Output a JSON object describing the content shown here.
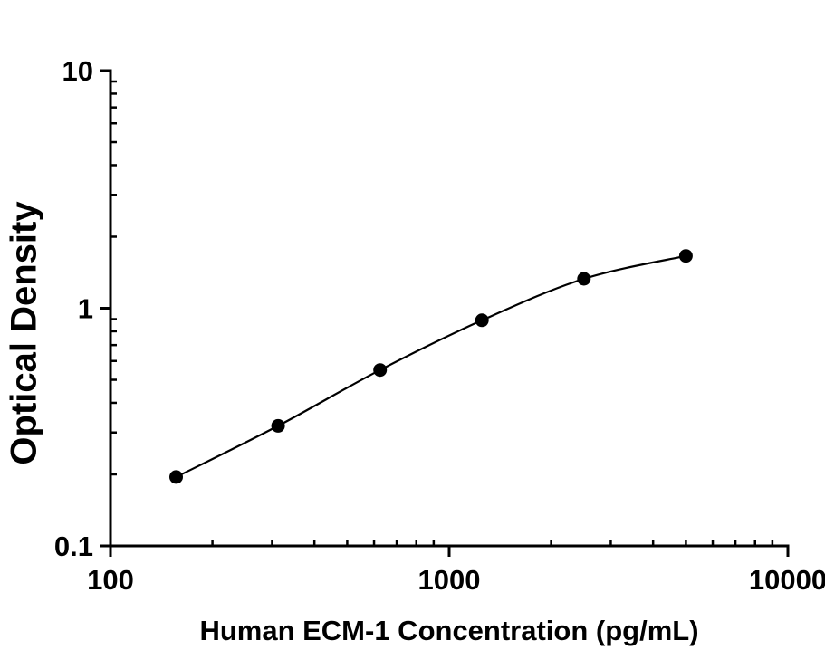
{
  "chart_data": {
    "type": "line",
    "xlabel": "Human ECM-1 Concentration (pg/mL)",
    "ylabel": "Optical Density",
    "xscale": "log",
    "yscale": "log",
    "xlim": [
      100,
      10000
    ],
    "ylim": [
      0.1,
      10
    ],
    "grid": false,
    "x": [
      156.25,
      312.5,
      625,
      1250,
      2500,
      5000
    ],
    "y": [
      0.195,
      0.32,
      0.55,
      0.89,
      1.33,
      1.66
    ],
    "xticks": [
      {
        "value": 100,
        "label": "100"
      },
      {
        "value": 1000,
        "label": "1000"
      },
      {
        "value": 10000,
        "label": "10000"
      }
    ],
    "yticks": [
      {
        "value": 10,
        "label": "10"
      },
      {
        "value": 1,
        "label": "1"
      },
      {
        "value": 0.1,
        "label": "0.1"
      }
    ],
    "marker": {
      "shape": "circle",
      "radius": 7.5,
      "color": "#000000"
    },
    "line": {
      "color": "#000000",
      "width": 2.2
    },
    "colors": {
      "axis": "#000000",
      "text": "#000000",
      "background": "#ffffff"
    }
  }
}
